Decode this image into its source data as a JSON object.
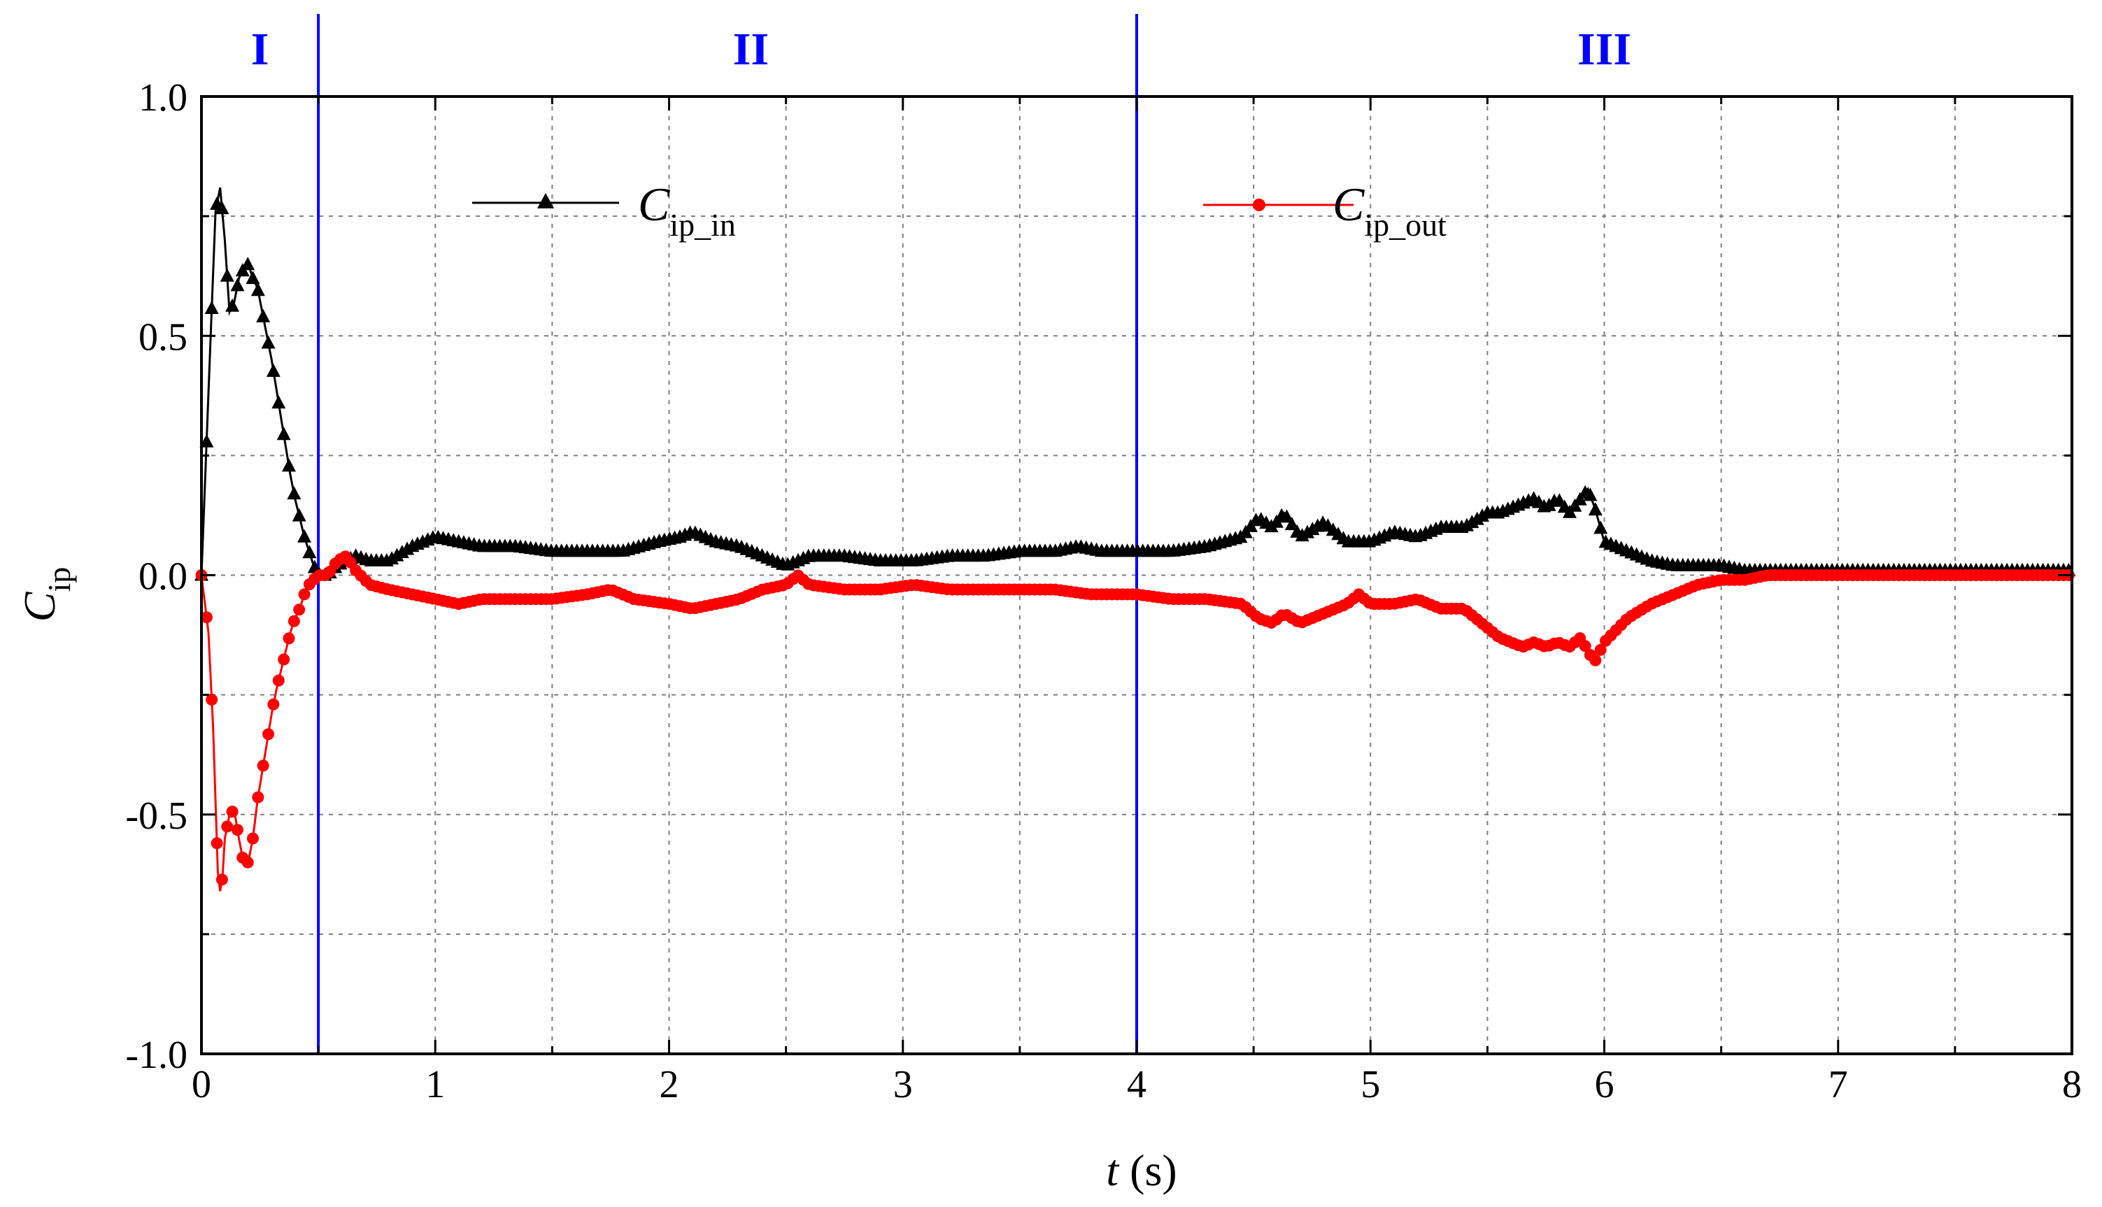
{
  "chart_data": {
    "type": "line",
    "title": "",
    "xlabel": {
      "var": "t",
      "unit": " (s)"
    },
    "ylabel": {
      "main": "C",
      "sub": "ip"
    },
    "xlim": [
      0,
      8
    ],
    "ylim": [
      -1.0,
      1.0
    ],
    "x_ticks": [
      0,
      1,
      2,
      3,
      4,
      5,
      6,
      7,
      8
    ],
    "x_tick_labels": [
      "0",
      "1",
      "2",
      "3",
      "4",
      "5",
      "6",
      "7",
      "8"
    ],
    "y_ticks": [
      -1.0,
      -0.5,
      0.0,
      0.5,
      1.0
    ],
    "y_tick_labels": [
      "-1.0",
      "-0.5",
      "0.0",
      "0.5",
      "1.0"
    ],
    "grid": true,
    "region_boundaries": [
      0.5,
      4.0
    ],
    "regions": [
      {
        "label": "I",
        "x": 0.25
      },
      {
        "label": "II",
        "x": 2.35
      },
      {
        "label": "III",
        "x": 6.0
      }
    ],
    "series": [
      {
        "name_main": "C",
        "name_sub": "ip_in",
        "color": "#000000",
        "marker": "triangle",
        "x": [
          0.0,
          0.03,
          0.06,
          0.08,
          0.1,
          0.12,
          0.14,
          0.16,
          0.18,
          0.2,
          0.22,
          0.24,
          0.26,
          0.28,
          0.3,
          0.32,
          0.34,
          0.36,
          0.38,
          0.4,
          0.42,
          0.44,
          0.46,
          0.48,
          0.5,
          0.54,
          0.58,
          0.62,
          0.66,
          0.72,
          0.8,
          0.9,
          1.0,
          1.1,
          1.2,
          1.35,
          1.5,
          1.65,
          1.8,
          1.95,
          2.05,
          2.1,
          2.2,
          2.3,
          2.4,
          2.5,
          2.6,
          2.75,
          2.9,
          3.05,
          3.2,
          3.35,
          3.5,
          3.65,
          3.75,
          3.85,
          4.0,
          4.15,
          4.3,
          4.45,
          4.52,
          4.58,
          4.63,
          4.7,
          4.8,
          4.9,
          5.0,
          5.1,
          5.2,
          5.3,
          5.4,
          5.5,
          5.55,
          5.6,
          5.65,
          5.7,
          5.75,
          5.8,
          5.85,
          5.9,
          5.93,
          5.96,
          6.0,
          6.1,
          6.2,
          6.3,
          6.4,
          6.5,
          6.6,
          6.7,
          6.8,
          7.0,
          7.2,
          7.5,
          7.8,
          8.0
        ],
        "y": [
          0.0,
          0.38,
          0.76,
          0.81,
          0.7,
          0.55,
          0.57,
          0.62,
          0.64,
          0.65,
          0.62,
          0.6,
          0.55,
          0.5,
          0.45,
          0.39,
          0.33,
          0.27,
          0.21,
          0.16,
          0.12,
          0.08,
          0.05,
          0.02,
          0.0,
          0.0,
          0.02,
          0.03,
          0.04,
          0.03,
          0.03,
          0.06,
          0.08,
          0.07,
          0.06,
          0.06,
          0.05,
          0.05,
          0.05,
          0.07,
          0.08,
          0.09,
          0.07,
          0.06,
          0.04,
          0.02,
          0.04,
          0.04,
          0.03,
          0.03,
          0.04,
          0.04,
          0.05,
          0.05,
          0.06,
          0.05,
          0.05,
          0.05,
          0.06,
          0.08,
          0.12,
          0.1,
          0.13,
          0.08,
          0.11,
          0.07,
          0.07,
          0.09,
          0.08,
          0.1,
          0.1,
          0.13,
          0.13,
          0.14,
          0.15,
          0.16,
          0.14,
          0.16,
          0.13,
          0.16,
          0.18,
          0.14,
          0.07,
          0.05,
          0.03,
          0.02,
          0.02,
          0.02,
          0.01,
          0.01,
          0.01,
          0.01,
          0.01,
          0.01,
          0.01,
          0.01
        ]
      },
      {
        "name_main": "C",
        "name_sub": "ip_out",
        "color": "#ff0000",
        "marker": "circle",
        "x": [
          0.0,
          0.03,
          0.05,
          0.07,
          0.08,
          0.09,
          0.1,
          0.12,
          0.14,
          0.16,
          0.18,
          0.2,
          0.22,
          0.24,
          0.26,
          0.28,
          0.3,
          0.32,
          0.34,
          0.36,
          0.38,
          0.4,
          0.42,
          0.44,
          0.46,
          0.48,
          0.5,
          0.54,
          0.58,
          0.62,
          0.66,
          0.72,
          0.8,
          0.9,
          1.0,
          1.1,
          1.2,
          1.35,
          1.5,
          1.65,
          1.75,
          1.85,
          2.0,
          2.1,
          2.2,
          2.3,
          2.4,
          2.5,
          2.55,
          2.6,
          2.75,
          2.9,
          3.05,
          3.2,
          3.35,
          3.5,
          3.65,
          3.8,
          4.0,
          4.15,
          4.3,
          4.45,
          4.52,
          4.58,
          4.63,
          4.7,
          4.8,
          4.9,
          4.95,
          5.0,
          5.1,
          5.2,
          5.3,
          5.4,
          5.5,
          5.55,
          5.6,
          5.65,
          5.7,
          5.75,
          5.8,
          5.85,
          5.9,
          5.93,
          5.96,
          6.0,
          6.1,
          6.2,
          6.3,
          6.4,
          6.5,
          6.6,
          6.7,
          6.8,
          7.0,
          7.2,
          7.5,
          7.8,
          8.0
        ],
        "y": [
          0.0,
          -0.12,
          -0.32,
          -0.62,
          -0.66,
          -0.63,
          -0.55,
          -0.5,
          -0.49,
          -0.55,
          -0.6,
          -0.6,
          -0.55,
          -0.47,
          -0.41,
          -0.35,
          -0.29,
          -0.24,
          -0.2,
          -0.16,
          -0.12,
          -0.09,
          -0.07,
          -0.04,
          -0.02,
          -0.01,
          0.0,
          0.0,
          0.03,
          0.04,
          0.01,
          -0.02,
          -0.03,
          -0.04,
          -0.05,
          -0.06,
          -0.05,
          -0.05,
          -0.05,
          -0.04,
          -0.03,
          -0.05,
          -0.06,
          -0.07,
          -0.06,
          -0.05,
          -0.03,
          -0.02,
          0.0,
          -0.02,
          -0.03,
          -0.03,
          -0.02,
          -0.03,
          -0.03,
          -0.03,
          -0.03,
          -0.04,
          -0.04,
          -0.05,
          -0.05,
          -0.06,
          -0.09,
          -0.1,
          -0.08,
          -0.1,
          -0.08,
          -0.06,
          -0.04,
          -0.06,
          -0.06,
          -0.05,
          -0.07,
          -0.07,
          -0.11,
          -0.13,
          -0.14,
          -0.15,
          -0.14,
          -0.15,
          -0.14,
          -0.15,
          -0.13,
          -0.16,
          -0.18,
          -0.14,
          -0.09,
          -0.06,
          -0.04,
          -0.02,
          -0.01,
          -0.01,
          0.0,
          0.0,
          0.0,
          0.0,
          0.0,
          0.0,
          0.0
        ]
      }
    ]
  },
  "colors": {
    "region_line": "#0000ff",
    "region_label": "#0000ff",
    "grid": "#7f7f7f",
    "axis": "#000000"
  }
}
